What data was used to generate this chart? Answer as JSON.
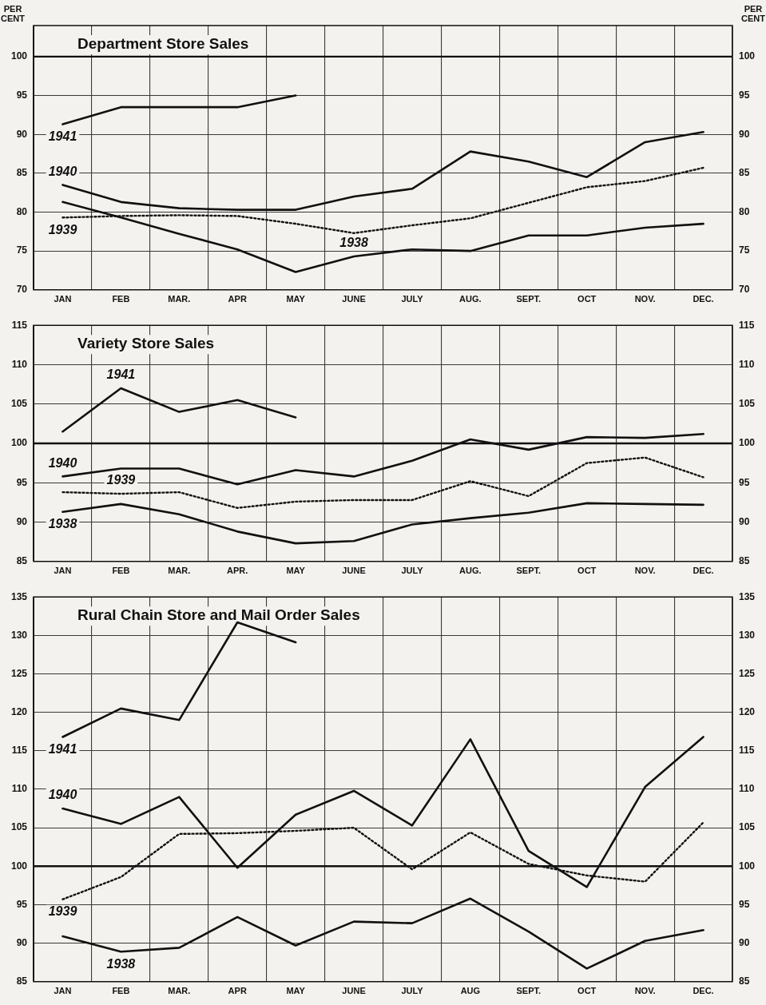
{
  "chart_data": [
    {
      "type": "line",
      "title": "Department Store Sales",
      "ylabel": "PER CENT",
      "y2label": "PER CENT",
      "categories": [
        "JAN",
        "FEB",
        "MAR.",
        "APR",
        "MAY",
        "JUNE",
        "JULY",
        "AUG.",
        "SEPT.",
        "OCT",
        "NOV.",
        "DEC."
      ],
      "series": [
        {
          "name": "1941",
          "color": "#111111",
          "line_style": "solid",
          "values": [
            91.3,
            93.5,
            93.5,
            93.5,
            95,
            null,
            null,
            null,
            null,
            null,
            null,
            null
          ]
        },
        {
          "name": "1940",
          "color": "#111111",
          "line_style": "solid",
          "values": [
            83.5,
            81.3,
            80.5,
            80.3,
            80.3,
            82,
            83,
            87.8,
            86.5,
            84.5,
            89,
            90.3
          ]
        },
        {
          "name": "1939",
          "color": "#111111",
          "line_style": "dotted",
          "values": [
            79.3,
            79.5,
            79.6,
            79.5,
            78.5,
            77.3,
            78.3,
            79.2,
            81.2,
            83.2,
            84,
            85.7
          ]
        },
        {
          "name": "1938",
          "color": "#111111",
          "line_style": "solid",
          "values": [
            81.3,
            79.3,
            77.2,
            75.2,
            72.3,
            74.3,
            75.2,
            75,
            77,
            77,
            78,
            78.5
          ]
        }
      ],
      "ylim": [
        70,
        104
      ],
      "yticks": [
        70,
        75,
        80,
        85,
        90,
        95,
        100
      ],
      "y2lim": [
        70,
        104
      ],
      "y2ticks": [
        70,
        75,
        80,
        85,
        90,
        95,
        100
      ],
      "ref_lines": [
        {
          "axis": "y",
          "value": 100
        }
      ],
      "grid": true,
      "legend": false,
      "marker": "none"
    },
    {
      "type": "line",
      "title": "Variety Store Sales",
      "categories": [
        "JAN",
        "FEB",
        "MAR.",
        "APR.",
        "MAY",
        "JUNE",
        "JULY",
        "AUG.",
        "SEPT.",
        "OCT",
        "NOV.",
        "DEC."
      ],
      "series": [
        {
          "name": "1941",
          "color": "#111111",
          "line_style": "solid",
          "values": [
            101.5,
            107,
            104,
            105.5,
            103.3,
            null,
            null,
            null,
            null,
            null,
            null,
            null
          ]
        },
        {
          "name": "1940",
          "color": "#111111",
          "line_style": "solid",
          "values": [
            95.8,
            96.8,
            96.8,
            94.8,
            96.6,
            95.8,
            97.8,
            100.5,
            99.2,
            100.8,
            100.7,
            101.2
          ]
        },
        {
          "name": "1939",
          "color": "#111111",
          "line_style": "dotted",
          "values": [
            93.8,
            93.6,
            93.8,
            91.8,
            92.6,
            92.8,
            92.8,
            95.2,
            93.3,
            97.5,
            98.2,
            95.7
          ]
        },
        {
          "name": "1938",
          "color": "#111111",
          "line_style": "solid",
          "values": [
            91.3,
            92.3,
            91,
            88.8,
            87.3,
            87.6,
            89.7,
            90.5,
            91.2,
            92.4,
            92.3,
            92.2
          ]
        }
      ],
      "ylim": [
        85,
        115
      ],
      "yticks": [
        85,
        90,
        95,
        100,
        105,
        110,
        115
      ],
      "y2lim": [
        85,
        115
      ],
      "y2ticks": [
        85,
        90,
        95,
        100,
        105,
        110,
        115
      ],
      "ref_lines": [
        {
          "axis": "y",
          "value": 100
        }
      ],
      "grid": true,
      "legend": false,
      "marker": "none"
    },
    {
      "type": "line",
      "title": "Rural Chain Store and Mail Order Sales",
      "categories": [
        "JAN",
        "FEB",
        "MAR.",
        "APR",
        "MAY",
        "JUNE",
        "JULY",
        "AUG",
        "SEPT.",
        "OCT",
        "NOV.",
        "DEC."
      ],
      "series": [
        {
          "name": "1941",
          "color": "#111111",
          "line_style": "solid",
          "values": [
            116.8,
            120.5,
            119,
            131.7,
            129.1,
            null,
            null,
            null,
            null,
            null,
            null,
            null
          ]
        },
        {
          "name": "1940",
          "color": "#111111",
          "line_style": "solid",
          "values": [
            107.5,
            105.5,
            109,
            99.8,
            106.7,
            109.8,
            105.3,
            116.5,
            102,
            97.3,
            110.3,
            116.8
          ]
        },
        {
          "name": "1939",
          "color": "#111111",
          "line_style": "dotted",
          "values": [
            95.7,
            98.6,
            104.2,
            104.3,
            104.6,
            105,
            99.6,
            104.4,
            100.3,
            98.8,
            98,
            105.7
          ]
        },
        {
          "name": "1938",
          "color": "#111111",
          "line_style": "solid",
          "values": [
            90.9,
            88.9,
            89.4,
            93.4,
            89.7,
            92.8,
            92.6,
            95.8,
            91.5,
            86.7,
            90.3,
            91.7
          ]
        }
      ],
      "ylim": [
        85,
        135
      ],
      "yticks": [
        85,
        90,
        95,
        100,
        105,
        110,
        115,
        120,
        125,
        130,
        135
      ],
      "y2lim": [
        85,
        135
      ],
      "y2ticks": [
        85,
        90,
        95,
        100,
        105,
        110,
        115,
        120,
        125,
        130,
        135
      ],
      "ref_lines": [
        {
          "axis": "y",
          "value": 100
        }
      ],
      "grid": true,
      "legend": false,
      "marker": "none"
    }
  ]
}
